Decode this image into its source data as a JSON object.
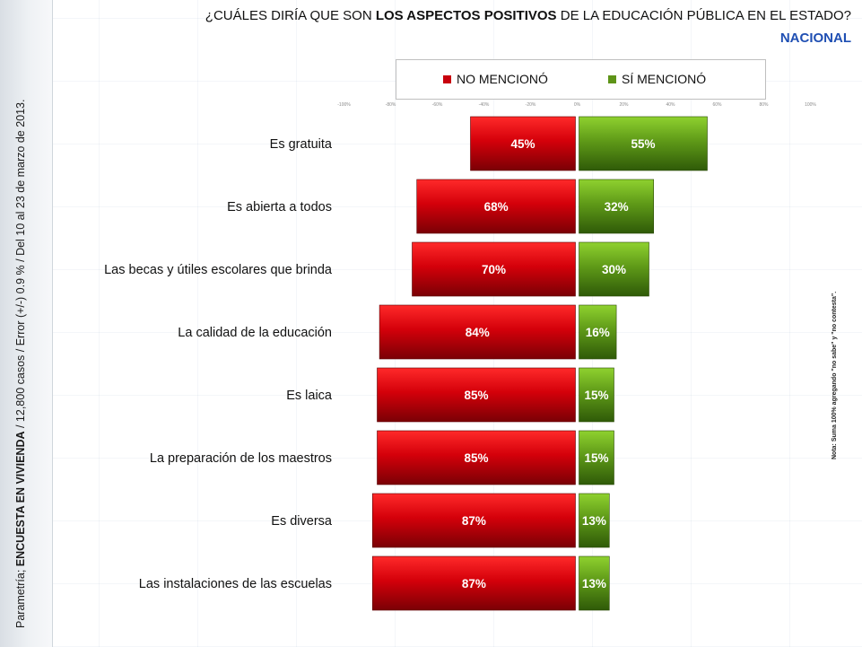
{
  "title_pre": "¿CUÁLES DIRÍA QUE SON ",
  "title_bold": "LOS ASPECTOS POSITIVOS",
  "title_post": " DE LA EDUCACIÓN PÚBLICA EN EL ESTADO?",
  "subtitle": "NACIONAL",
  "side_pre": "Parametría; ",
  "side_bold": "ENCUESTA EN VIVIENDA",
  "side_post": " / 12,800 casos / Error (+/-) 0.9 % / Del 10 al 23 de marzo de 2013.",
  "note": "Nota: Suma 100% agregando \"no sabe\" y \"no contesta\".",
  "colors": {
    "no": "#c8000d",
    "si": "#5e9418"
  },
  "chart_data": {
    "type": "bar",
    "orientation": "horizontal-diverging",
    "categories": [
      "Es gratuita",
      "Es abierta a todos",
      "Las becas y útiles escolares que brinda",
      "La calidad de la educación",
      "Es laica",
      "La preparación de los maestros",
      "Es diversa",
      "Las instalaciones de las escuelas"
    ],
    "series": [
      {
        "name": "NO MENCIONÓ",
        "values": [
          45,
          68,
          70,
          84,
          85,
          85,
          87,
          87
        ],
        "labels": [
          "45%",
          "68%",
          "70%",
          "84%",
          "85%",
          "85%",
          "87%",
          "87%"
        ]
      },
      {
        "name": "SÍ MENCIONÓ",
        "values": [
          55,
          32,
          30,
          16,
          15,
          15,
          13,
          13
        ],
        "labels": [
          "55%",
          "32%",
          "30%",
          "16%",
          "15%",
          "15%",
          "13%",
          "13%"
        ]
      }
    ],
    "xlim": [
      -100,
      100
    ],
    "xticks": [
      -100,
      -80,
      -60,
      -40,
      -20,
      0,
      20,
      40,
      60,
      80,
      100
    ],
    "xtick_labels": [
      "-100%",
      "-80%",
      "-60%",
      "-40%",
      "-20%",
      "0%",
      "20%",
      "40%",
      "60%",
      "80%",
      "100%"
    ],
    "legend": "top"
  }
}
